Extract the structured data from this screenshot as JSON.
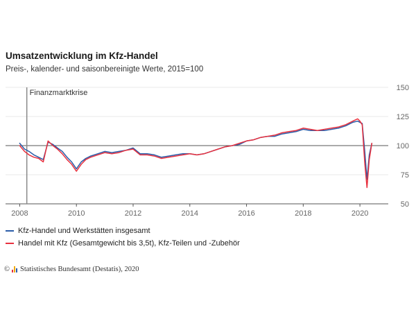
{
  "header": {
    "title": "Umsatzentwicklung im Kfz-Handel",
    "subtitle": "Preis-, kalender- und saisonbereinigte Werte, 2015=100"
  },
  "legend": [
    {
      "label": "Kfz-Handel und Werkstätten insgesamt",
      "color": "#2a5ca8"
    },
    {
      "label": "Handel mit Kfz (Gesamtgewicht bis 3,5t), Kfz-Teilen und -Zubehör",
      "color": "#e8303e"
    }
  ],
  "source": {
    "copyright": "©",
    "text": "Statistisches Bundesamt (Destatis), 2020",
    "logo_colors": [
      "#e8303e",
      "#f2a900",
      "#2a5ca8"
    ]
  },
  "chart_data": {
    "type": "line",
    "title": "Umsatzentwicklung im Kfz-Handel",
    "subtitle": "Preis-, kalender- und saisonbereinigte Werte, 2015=100",
    "xlabel": "",
    "ylabel": "",
    "xlim": [
      2007.5,
      2021.0
    ],
    "ylim": [
      50,
      150
    ],
    "x_ticks": [
      2008,
      2010,
      2012,
      2014,
      2016,
      2018,
      2020
    ],
    "y_ticks": [
      50,
      75,
      100,
      125,
      150
    ],
    "x_tick_labels": [
      "2008",
      "2010",
      "2012",
      "2014",
      "2016",
      "2018",
      "2020"
    ],
    "y_tick_labels": [
      "50",
      "75",
      "100",
      "125",
      "150"
    ],
    "reference_line": 100,
    "grid": "horizontal",
    "legend_position": "bottom",
    "annotations": [
      {
        "label": "Finanzmarktkrise",
        "x": 2008.25
      }
    ],
    "series": [
      {
        "name": "Kfz-Handel und Werkstätten insgesamt",
        "color": "#2a5ca8",
        "x": [
          2008.0,
          2008.17,
          2008.33,
          2008.5,
          2008.67,
          2008.83,
          2009.0,
          2009.17,
          2009.33,
          2009.5,
          2009.67,
          2009.83,
          2010.0,
          2010.17,
          2010.33,
          2010.5,
          2010.75,
          2011.0,
          2011.25,
          2011.5,
          2011.75,
          2012.0,
          2012.25,
          2012.5,
          2012.75,
          2013.0,
          2013.25,
          2013.5,
          2013.75,
          2014.0,
          2014.25,
          2014.5,
          2014.75,
          2015.0,
          2015.25,
          2015.5,
          2015.75,
          2016.0,
          2016.25,
          2016.5,
          2016.75,
          2017.0,
          2017.25,
          2017.5,
          2017.75,
          2018.0,
          2018.25,
          2018.5,
          2018.75,
          2019.0,
          2019.25,
          2019.5,
          2019.75,
          2019.92,
          2020.0,
          2020.08,
          2020.17,
          2020.25,
          2020.33,
          2020.42
        ],
        "values": [
          102,
          97,
          95,
          92,
          90,
          88,
          103,
          101,
          98,
          95,
          90,
          86,
          80,
          86,
          89,
          91,
          93,
          95,
          94,
          95,
          96,
          98,
          93,
          93,
          92,
          90,
          91,
          92,
          93,
          93,
          92,
          93,
          95,
          97,
          99,
          100,
          101,
          104,
          105,
          107,
          108,
          108,
          110,
          111,
          112,
          114,
          113,
          113,
          113,
          114,
          115,
          117,
          120,
          121,
          120,
          119,
          95,
          71,
          92,
          102
        ]
      },
      {
        "name": "Handel mit Kfz (Gesamtgewicht bis 3,5t), Kfz-Teilen und -Zubehör",
        "color": "#e8303e",
        "x": [
          2008.0,
          2008.17,
          2008.33,
          2008.5,
          2008.67,
          2008.83,
          2009.0,
          2009.17,
          2009.33,
          2009.5,
          2009.67,
          2009.83,
          2010.0,
          2010.17,
          2010.33,
          2010.5,
          2010.75,
          2011.0,
          2011.25,
          2011.5,
          2011.75,
          2012.0,
          2012.25,
          2012.5,
          2012.75,
          2013.0,
          2013.25,
          2013.5,
          2013.75,
          2014.0,
          2014.25,
          2014.5,
          2014.75,
          2015.0,
          2015.25,
          2015.5,
          2015.75,
          2016.0,
          2016.25,
          2016.5,
          2016.75,
          2017.0,
          2017.25,
          2017.5,
          2017.75,
          2018.0,
          2018.25,
          2018.5,
          2018.75,
          2019.0,
          2019.25,
          2019.5,
          2019.75,
          2019.92,
          2020.0,
          2020.08,
          2020.17,
          2020.25,
          2020.33,
          2020.42
        ],
        "values": [
          100,
          95,
          92,
          90,
          89,
          86,
          104,
          100,
          97,
          93,
          88,
          84,
          78,
          84,
          88,
          90,
          92,
          94,
          93,
          94,
          96,
          97,
          92,
          92,
          91,
          89,
          90,
          91,
          92,
          93,
          92,
          93,
          95,
          97,
          99,
          100,
          102,
          104,
          105,
          107,
          108,
          109,
          111,
          112,
          113,
          115,
          114,
          113,
          114,
          115,
          116,
          118,
          121,
          123,
          121,
          118,
          85,
          64,
          88,
          102
        ]
      }
    ]
  }
}
